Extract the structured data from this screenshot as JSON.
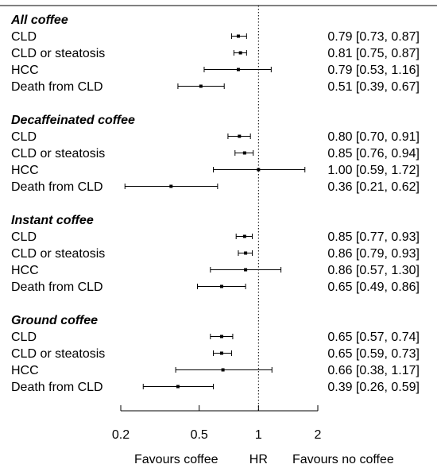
{
  "chart_data": {
    "type": "forest",
    "x_scale": "log",
    "reference_line": 1,
    "xlim": [
      0.2,
      2
    ],
    "x_ticks": [
      "0.2",
      "0.5",
      "1",
      "2"
    ],
    "x_tick_values": [
      0.2,
      0.5,
      1,
      2
    ],
    "axis_left_text": "Favours coffee",
    "axis_center_text": "HR",
    "axis_right_text": "Favours no coffee",
    "groups": [
      {
        "title": "All coffee",
        "rows": [
          {
            "label": "CLD",
            "hr": 0.79,
            "lo": 0.73,
            "hi": 0.87,
            "text": "0.79 [0.73, 0.87]"
          },
          {
            "label": "CLD or steatosis",
            "hr": 0.81,
            "lo": 0.75,
            "hi": 0.87,
            "text": "0.81 [0.75, 0.87]"
          },
          {
            "label": "HCC",
            "hr": 0.79,
            "lo": 0.53,
            "hi": 1.16,
            "text": "0.79 [0.53, 1.16]"
          },
          {
            "label": "Death from CLD",
            "hr": 0.51,
            "lo": 0.39,
            "hi": 0.67,
            "text": "0.51 [0.39, 0.67]"
          }
        ]
      },
      {
        "title": "Decaffeinated coffee",
        "rows": [
          {
            "label": "CLD",
            "hr": 0.8,
            "lo": 0.7,
            "hi": 0.91,
            "text": "0.80 [0.70, 0.91]"
          },
          {
            "label": "CLD or steatosis",
            "hr": 0.85,
            "lo": 0.76,
            "hi": 0.94,
            "text": "0.85 [0.76, 0.94]"
          },
          {
            "label": "HCC",
            "hr": 1.0,
            "lo": 0.59,
            "hi": 1.72,
            "text": "1.00 [0.59, 1.72]"
          },
          {
            "label": "Death from CLD",
            "hr": 0.36,
            "lo": 0.21,
            "hi": 0.62,
            "text": "0.36 [0.21, 0.62]"
          }
        ]
      },
      {
        "title": "Instant coffee",
        "rows": [
          {
            "label": "CLD",
            "hr": 0.85,
            "lo": 0.77,
            "hi": 0.93,
            "text": "0.85 [0.77, 0.93]"
          },
          {
            "label": "CLD or steatosis",
            "hr": 0.86,
            "lo": 0.79,
            "hi": 0.93,
            "text": "0.86 [0.79, 0.93]"
          },
          {
            "label": "HCC",
            "hr": 0.86,
            "lo": 0.57,
            "hi": 1.3,
            "text": "0.86 [0.57, 1.30]"
          },
          {
            "label": "Death from CLD",
            "hr": 0.65,
            "lo": 0.49,
            "hi": 0.86,
            "text": "0.65 [0.49, 0.86]"
          }
        ]
      },
      {
        "title": "Ground coffee",
        "rows": [
          {
            "label": "CLD",
            "hr": 0.65,
            "lo": 0.57,
            "hi": 0.74,
            "text": "0.65 [0.57, 0.74]"
          },
          {
            "label": "CLD or steatosis",
            "hr": 0.65,
            "lo": 0.59,
            "hi": 0.73,
            "text": "0.65 [0.59, 0.73]"
          },
          {
            "label": "HCC",
            "hr": 0.66,
            "lo": 0.38,
            "hi": 1.17,
            "text": "0.66 [0.38, 1.17]"
          },
          {
            "label": "Death from CLD",
            "hr": 0.39,
            "lo": 0.26,
            "hi": 0.59,
            "text": "0.39 [0.26, 0.59]"
          }
        ]
      }
    ]
  }
}
